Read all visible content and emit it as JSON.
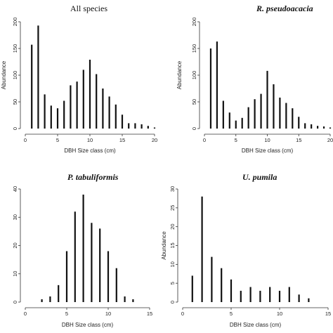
{
  "chart_data": [
    {
      "type": "bar",
      "panel": "top-left",
      "title": "All species",
      "title_style": "plain",
      "xlabel": "DBH Size class (cm)",
      "ylabel": "Abundance",
      "xlim": [
        0,
        20
      ],
      "ylim": [
        0,
        200
      ],
      "xticks": [
        0,
        5,
        10,
        15,
        20
      ],
      "yticks": [
        0,
        50,
        100,
        150,
        200
      ],
      "x": [
        1,
        2,
        3,
        4,
        5,
        6,
        7,
        8,
        9,
        10,
        11,
        12,
        13,
        14,
        15,
        16,
        17,
        18,
        19,
        20
      ],
      "values": [
        157,
        193,
        64,
        43,
        38,
        52,
        81,
        88,
        110,
        129,
        102,
        75,
        60,
        45,
        26,
        10,
        10,
        8,
        5,
        2
      ]
    },
    {
      "type": "bar",
      "panel": "top-right",
      "title": "R. pseudoacacia",
      "title_style": "bold-italic",
      "xlabel": "DBH Size class (cm)",
      "ylabel": "Abundance",
      "xlim": [
        0,
        20
      ],
      "ylim": [
        0,
        200
      ],
      "xticks": [
        0,
        5,
        10,
        15,
        20
      ],
      "yticks": [
        0,
        50,
        100,
        150,
        200
      ],
      "x": [
        1,
        2,
        3,
        4,
        5,
        6,
        7,
        8,
        9,
        10,
        11,
        12,
        13,
        14,
        15,
        16,
        17,
        18,
        19,
        20
      ],
      "values": [
        150,
        163,
        52,
        30,
        15,
        20,
        40,
        55,
        65,
        108,
        83,
        58,
        48,
        38,
        22,
        10,
        8,
        5,
        4,
        2
      ]
    },
    {
      "type": "bar",
      "panel": "bottom-left",
      "title": "P. tabuliformis",
      "title_style": "bold-italic",
      "xlabel": "DBH Size class (cm)",
      "ylabel": "",
      "xlim": [
        0,
        15
      ],
      "ylim": [
        0,
        40
      ],
      "xticks": [
        0,
        5,
        10,
        15
      ],
      "yticks": [
        0,
        10,
        20,
        30,
        40
      ],
      "x": [
        2,
        3,
        4,
        5,
        6,
        7,
        8,
        9,
        10,
        11,
        12,
        13
      ],
      "values": [
        1,
        2,
        6,
        18,
        32,
        38,
        28,
        26,
        18,
        12,
        2,
        1
      ]
    },
    {
      "type": "bar",
      "panel": "bottom-right",
      "title": "U. pumila",
      "title_style": "bold-italic",
      "xlabel": "DBH Size class (cm)",
      "ylabel": "Abundance",
      "xlim": [
        0,
        15
      ],
      "ylim": [
        0,
        30
      ],
      "xticks": [
        0,
        5,
        10,
        15
      ],
      "yticks": [
        0,
        5,
        10,
        15,
        20,
        25,
        30
      ],
      "x": [
        1,
        2,
        3,
        4,
        5,
        6,
        7,
        8,
        9,
        10,
        11,
        12,
        13
      ],
      "values": [
        7,
        28,
        12,
        9,
        6,
        3,
        4,
        3,
        4,
        3,
        4,
        2,
        1
      ]
    }
  ]
}
